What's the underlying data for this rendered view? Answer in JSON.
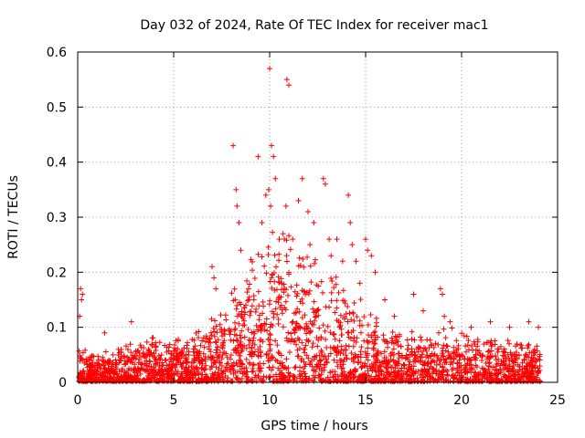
{
  "chart_data": {
    "type": "scatter",
    "title": "Day 032 of 2024, Rate Of TEC Index for receiver mac1",
    "xlabel": "GPS time / hours",
    "ylabel": "ROTI / TECUs",
    "xlim": [
      0,
      25
    ],
    "ylim": [
      0,
      0.6
    ],
    "xticks": [
      0,
      5,
      10,
      15,
      20,
      25
    ],
    "yticks": [
      0,
      0.1,
      0.2,
      0.3,
      0.4,
      0.5,
      0.6
    ],
    "xtick_labels": [
      "0",
      "5",
      "10",
      "15",
      "20",
      "25"
    ],
    "ytick_labels": [
      "0",
      "0.1",
      "0.2",
      "0.3",
      "0.4",
      "0.5",
      "0.6"
    ],
    "grid": true,
    "marker": "+",
    "color": "#ff0000",
    "series": [
      {
        "name": "ROTI",
        "note": "dense background of ~thousands of points, level shown by envelope below",
        "envelope": {
          "x": [
            0,
            0.5,
            1,
            2,
            3,
            4,
            5,
            6,
            7,
            7.5,
            8,
            8.5,
            9,
            9.5,
            10,
            10.5,
            11,
            11.5,
            12,
            12.5,
            13,
            13.5,
            14,
            14.5,
            15,
            15.5,
            16,
            17,
            18,
            19,
            20,
            21,
            22,
            23,
            24
          ],
          "y": [
            0.07,
            0.06,
            0.05,
            0.06,
            0.07,
            0.08,
            0.08,
            0.09,
            0.11,
            0.14,
            0.17,
            0.2,
            0.23,
            0.26,
            0.28,
            0.28,
            0.27,
            0.25,
            0.24,
            0.22,
            0.2,
            0.19,
            0.17,
            0.15,
            0.13,
            0.11,
            0.09,
            0.09,
            0.09,
            0.1,
            0.09,
            0.08,
            0.08,
            0.07,
            0.07
          ]
        },
        "highlights": {
          "x": [
            0.1,
            0.15,
            0.2,
            0.25,
            1.4,
            2.8,
            7.0,
            7.1,
            7.2,
            8.1,
            8.25,
            8.3,
            8.4,
            8.5,
            9.4,
            9.6,
            9.8,
            9.95,
            10.0,
            10.05,
            10.1,
            10.2,
            10.3,
            10.5,
            10.7,
            10.85,
            10.9,
            11.0,
            11.2,
            11.5,
            11.7,
            12.0,
            12.1,
            12.3,
            12.8,
            12.9,
            13.1,
            13.2,
            13.5,
            13.8,
            14.1,
            14.2,
            14.3,
            14.5,
            14.7,
            15.0,
            15.1,
            15.3,
            15.5,
            16.0,
            16.5,
            17.5,
            18.0,
            18.9,
            19.0,
            19.1,
            19.4,
            20.5,
            21.5,
            22.5,
            23.5,
            24.0
          ],
          "y": [
            0.12,
            0.17,
            0.15,
            0.16,
            0.09,
            0.11,
            0.21,
            0.19,
            0.17,
            0.43,
            0.35,
            0.32,
            0.29,
            0.24,
            0.41,
            0.29,
            0.34,
            0.35,
            0.57,
            0.32,
            0.43,
            0.41,
            0.37,
            0.26,
            0.27,
            0.32,
            0.55,
            0.54,
            0.26,
            0.33,
            0.37,
            0.31,
            0.25,
            0.29,
            0.37,
            0.36,
            0.26,
            0.23,
            0.26,
            0.22,
            0.34,
            0.29,
            0.25,
            0.22,
            0.18,
            0.26,
            0.24,
            0.23,
            0.2,
            0.15,
            0.12,
            0.16,
            0.13,
            0.17,
            0.16,
            0.12,
            0.11,
            0.1,
            0.11,
            0.1,
            0.11,
            0.1
          ]
        }
      }
    ]
  }
}
